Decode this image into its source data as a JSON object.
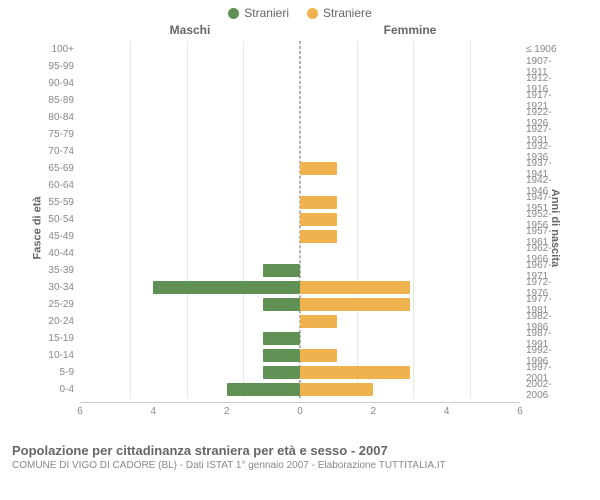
{
  "legend": {
    "male": {
      "label": "Stranieri",
      "color": "#5f9154"
    },
    "female": {
      "label": "Straniere",
      "color": "#f0b24f"
    }
  },
  "headers": {
    "left_axis_title": "Fasce di età",
    "right_axis_title": "Anni di nascita",
    "male_col": "Maschi",
    "female_col": "Femmine"
  },
  "chart": {
    "type": "population-pyramid",
    "xmax": 6,
    "xtick_step": 2,
    "bar_color_male": "#5f9154",
    "bar_color_female": "#f0b24f",
    "grid_color": "#e8e8e8",
    "center_line_color": "#666666",
    "background": "#ffffff",
    "rows": [
      {
        "age": "100+",
        "birth": "≤ 1906",
        "m": 0,
        "f": 0
      },
      {
        "age": "95-99",
        "birth": "1907-1911",
        "m": 0,
        "f": 0
      },
      {
        "age": "90-94",
        "birth": "1912-1916",
        "m": 0,
        "f": 0
      },
      {
        "age": "85-89",
        "birth": "1917-1921",
        "m": 0,
        "f": 0
      },
      {
        "age": "80-84",
        "birth": "1922-1926",
        "m": 0,
        "f": 0
      },
      {
        "age": "75-79",
        "birth": "1927-1931",
        "m": 0,
        "f": 0
      },
      {
        "age": "70-74",
        "birth": "1932-1936",
        "m": 0,
        "f": 0
      },
      {
        "age": "65-69",
        "birth": "1937-1941",
        "m": 0,
        "f": 1
      },
      {
        "age": "60-64",
        "birth": "1942-1946",
        "m": 0,
        "f": 0
      },
      {
        "age": "55-59",
        "birth": "1947-1951",
        "m": 0,
        "f": 1
      },
      {
        "age": "50-54",
        "birth": "1952-1956",
        "m": 0,
        "f": 1
      },
      {
        "age": "45-49",
        "birth": "1957-1961",
        "m": 0,
        "f": 1
      },
      {
        "age": "40-44",
        "birth": "1962-1966",
        "m": 0,
        "f": 0
      },
      {
        "age": "35-39",
        "birth": "1967-1971",
        "m": 1,
        "f": 0
      },
      {
        "age": "30-34",
        "birth": "1972-1976",
        "m": 4,
        "f": 3
      },
      {
        "age": "25-29",
        "birth": "1977-1981",
        "m": 1,
        "f": 3
      },
      {
        "age": "20-24",
        "birth": "1982-1986",
        "m": 0,
        "f": 1
      },
      {
        "age": "15-19",
        "birth": "1987-1991",
        "m": 1,
        "f": 0
      },
      {
        "age": "10-14",
        "birth": "1992-1996",
        "m": 1,
        "f": 1
      },
      {
        "age": "5-9",
        "birth": "1997-2001",
        "m": 1,
        "f": 3
      },
      {
        "age": "0-4",
        "birth": "2002-2006",
        "m": 2,
        "f": 2
      }
    ]
  },
  "footer": {
    "title": "Popolazione per cittadinanza straniera per età e sesso - 2007",
    "subtitle": "COMUNE DI VIGO DI CADORE (BL) - Dati ISTAT 1° gennaio 2007 - Elaborazione TUTTITALIA.IT"
  }
}
